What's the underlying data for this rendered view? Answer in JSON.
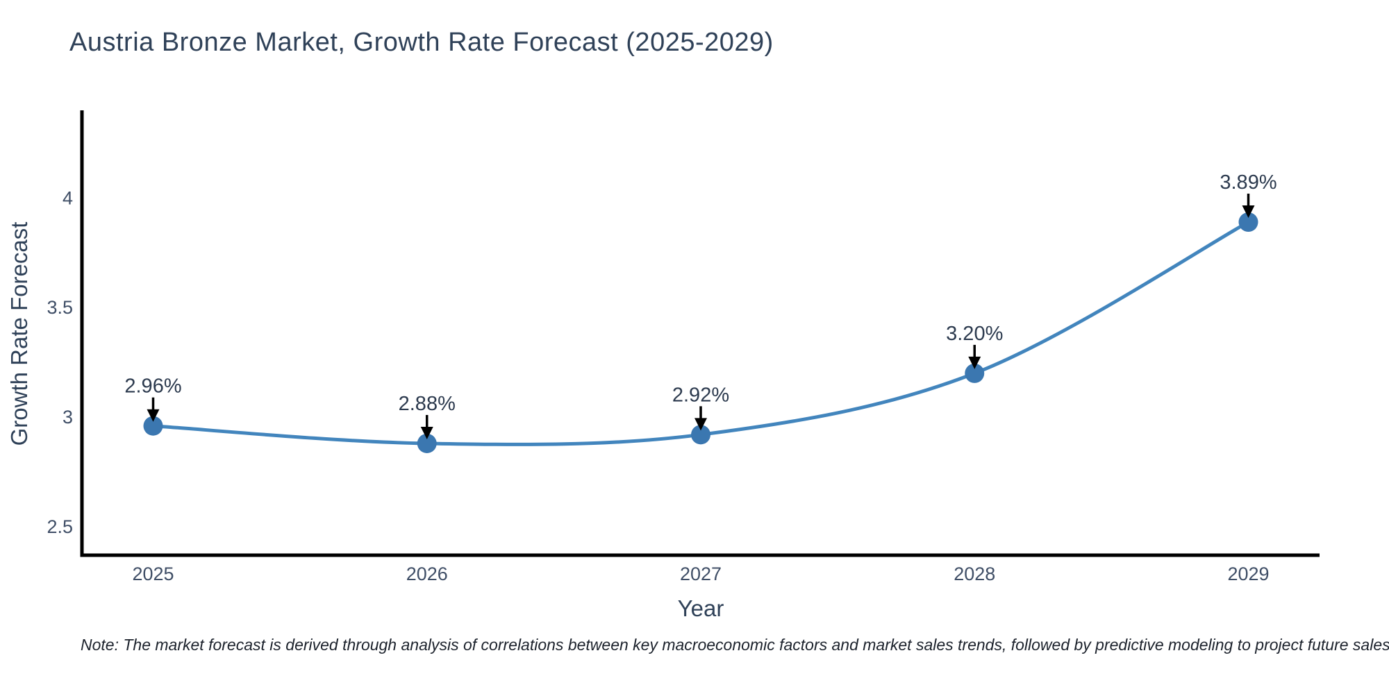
{
  "title": "Austria Bronze Market, Growth Rate Forecast (2025-2029)",
  "note": "Note: The market forecast is derived through analysis of correlations between key macroeconomic factors and market sales trends, followed by predictive modeling to project future sales",
  "chart_data": {
    "type": "line",
    "title": "Austria Bronze Market, Growth Rate Forecast (2025-2029)",
    "xlabel": "Year",
    "ylabel": "Growth Rate Forecast",
    "x": [
      2025,
      2026,
      2027,
      2028,
      2029
    ],
    "series": [
      {
        "name": "Growth Rate Forecast",
        "values": [
          2.96,
          2.88,
          2.92,
          3.2,
          3.89
        ],
        "point_labels": [
          "2.96%",
          "2.88%",
          "2.92%",
          "3.20%",
          "3.89%"
        ]
      }
    ],
    "xtick_labels": [
      "2025",
      "2026",
      "2027",
      "2028",
      "2029"
    ],
    "ytick_values": [
      2.5,
      3,
      3.5,
      4
    ],
    "ytick_labels": [
      "2.5",
      "3",
      "3.5",
      "4"
    ],
    "xlim": [
      2024.74,
      2029.26
    ],
    "ylim": [
      2.37,
      4.4
    ],
    "line_shape": "spline",
    "grid": false,
    "legend_visible": false,
    "annotations_have_arrows": true,
    "colors": {
      "line": "#4285bd",
      "marker": "#3b77b0",
      "axis_line": "#000000",
      "arrow": "#000000",
      "title_text": "#2f4158",
      "tick_text": "#3f4e66",
      "annotation_text": "#2c3a4e",
      "note_text": "#1c222c",
      "background": "#ffffff"
    }
  }
}
